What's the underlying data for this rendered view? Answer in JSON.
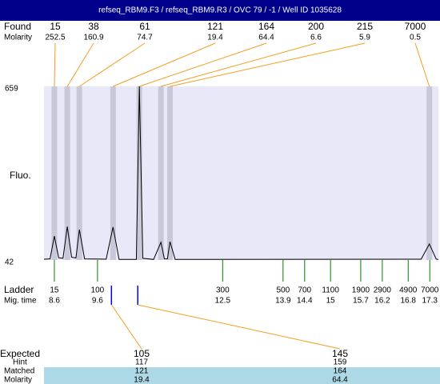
{
  "header": {
    "title": "refseq_RBM9.F3 / refseq_RBM9.R3 / OVC 79 / -1 / Well ID 1035628"
  },
  "found": {
    "label": "Found",
    "molarity_label": "Molarity",
    "peaks": [
      {
        "size": 15,
        "molarity": 252.5,
        "time": 8.6
      },
      {
        "size": 38,
        "molarity": 160.9,
        "time": 8.9
      },
      {
        "size": 61,
        "molarity": 74.7,
        "time": 9.18
      },
      {
        "size": 121,
        "molarity": 19.4,
        "time": 9.96
      },
      {
        "size": 164,
        "molarity": 64.4,
        "time": 10.57
      },
      {
        "size": 200,
        "molarity": 6.6,
        "time": 11.07
      },
      {
        "size": 215,
        "molarity": 5.9,
        "time": 11.28
      },
      {
        "size": 7000,
        "molarity": 0.5,
        "time": 17.29
      }
    ]
  },
  "chart_data": {
    "type": "line",
    "y_label": "Fluo.",
    "color": "#000000",
    "band_color": "#c8c8d8",
    "plot_color": "#e8e8f8",
    "xlim": [
      8.36,
      17.5
    ],
    "ylim": [
      42,
      659
    ],
    "yticks": [
      42,
      659
    ],
    "x": [
      8.36,
      8.5,
      8.6,
      8.7,
      8.8,
      8.9,
      9.0,
      9.1,
      9.18,
      9.3,
      9.8,
      9.96,
      10.1,
      10.5,
      10.57,
      10.65,
      10.9,
      11.07,
      11.15,
      11.22,
      11.28,
      11.4,
      17.1,
      17.29,
      17.45,
      17.5
    ],
    "values": [
      45,
      46,
      127,
      50,
      48,
      161,
      52,
      49,
      150,
      46,
      45,
      159,
      44,
      44,
      659,
      48,
      44,
      105,
      46,
      46,
      107,
      44,
      45,
      99,
      45,
      44
    ]
  },
  "ladder": {
    "label": "Ladder",
    "time_label": "Mig. time",
    "color": "#008000",
    "sizes": [
      15,
      100,
      300,
      500,
      700,
      1100,
      1900,
      2900,
      4900,
      7000
    ],
    "times": [
      8.6,
      9.6,
      12.5,
      13.9,
      14.4,
      15,
      15.7,
      16.2,
      16.8,
      17.3
    ]
  },
  "expected": {
    "label": "Expected",
    "hint_label": "Hint",
    "matched_label": "Matched",
    "molarity_label": "Molarity",
    "columns": [
      {
        "size": 105,
        "hint": 117,
        "matched": 121,
        "molarity": 19.4,
        "time": 9.96
      },
      {
        "size": 145,
        "hint": 159,
        "matched": 164,
        "molarity": 64.4,
        "time": 10.57
      }
    ]
  }
}
